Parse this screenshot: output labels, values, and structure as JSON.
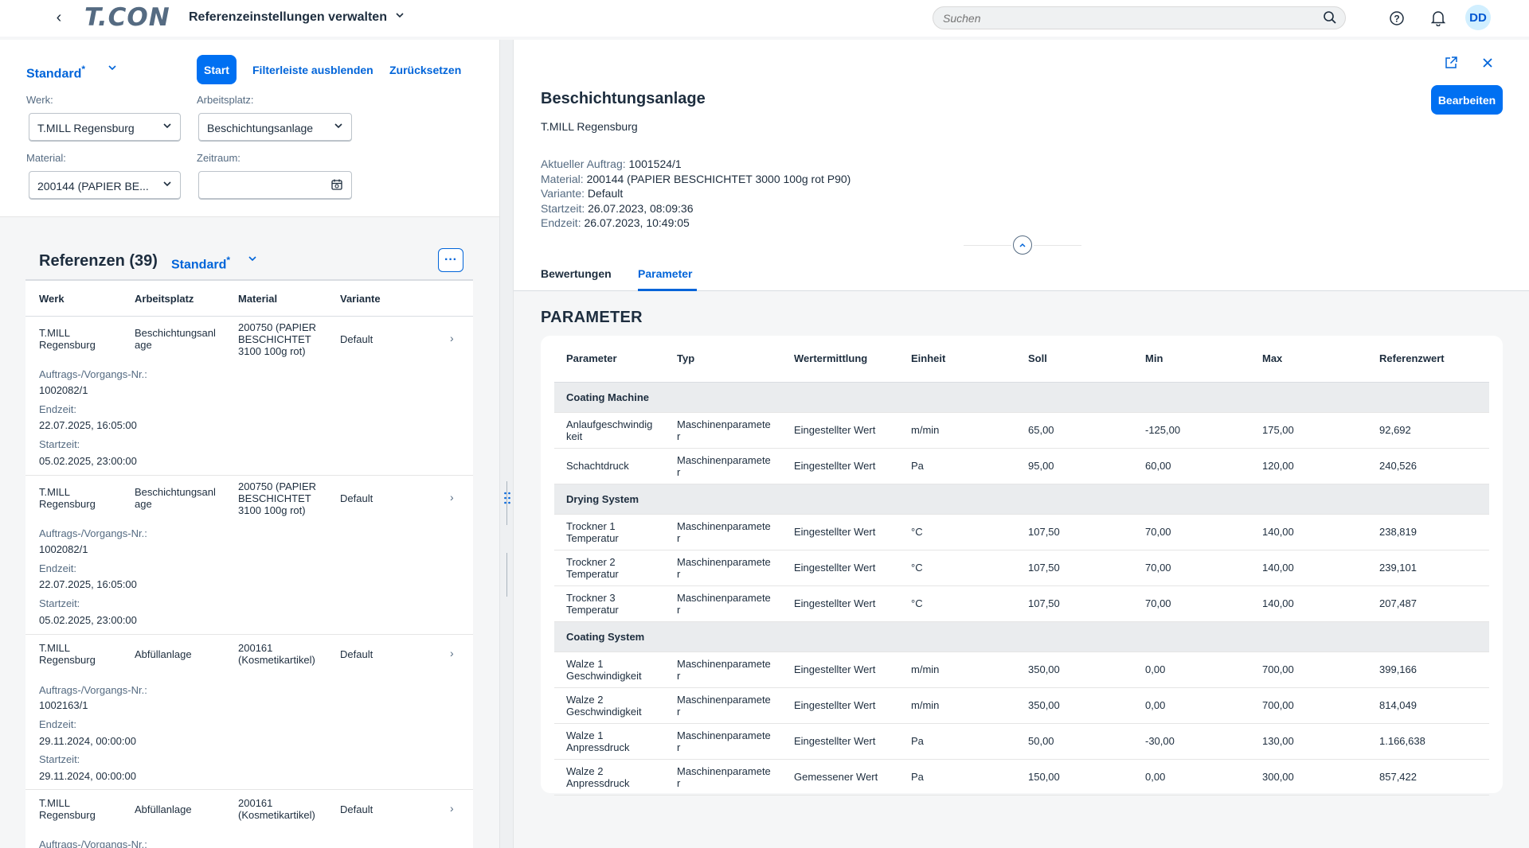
{
  "shell": {
    "logo": "T.CON",
    "app_title": "Referenzeinstellungen verwalten",
    "search_placeholder": "Suchen",
    "avatar_initials": "DD"
  },
  "filterbar": {
    "variant": "Standard",
    "variant_marker": "*",
    "start_label": "Start",
    "hide_label": "Filterleiste ausblenden",
    "reset_label": "Zurücksetzen",
    "werk_label": "Werk:",
    "werk_value": "T.MILL Regensburg",
    "arbeitsplatz_label": "Arbeitsplatz:",
    "arbeitsplatz_value": "Beschichtungsanlage",
    "material_label": "Material:",
    "material_value": "200144 (PAPIER BE...",
    "zeitraum_label": "Zeitraum:",
    "zeitraum_value": ""
  },
  "refs": {
    "title": "Referenzen (39)",
    "variant": "Standard",
    "variant_marker": "*",
    "more_label": "···",
    "columns": [
      "Werk",
      "Arbeitsplatz",
      "Material",
      "Variante"
    ],
    "items": [
      {
        "werk": "T.MILL\nRegensburg",
        "arbeitsplatz": "Beschichtungsanl\nage",
        "material": "200750 (PAPIER\nBESCHICHTET\n3100 100g rot)",
        "variante": "Default",
        "auftrag_label": "Auftrags-/Vorgangs-Nr.:",
        "auftrag": "1002082/1",
        "endzeit_label": "Endzeit:",
        "endzeit": "22.07.2025, 16:05:00",
        "startzeit_label": "Startzeit:",
        "startzeit": "05.02.2025, 23:00:00"
      },
      {
        "werk": "T.MILL\nRegensburg",
        "arbeitsplatz": "Beschichtungsanl\nage",
        "material": "200750 (PAPIER\nBESCHICHTET\n3100 100g rot)",
        "variante": "Default",
        "auftrag_label": "Auftrags-/Vorgangs-Nr.:",
        "auftrag": "1002082/1",
        "endzeit_label": "Endzeit:",
        "endzeit": "22.07.2025, 16:05:00",
        "startzeit_label": "Startzeit:",
        "startzeit": "05.02.2025, 23:00:00"
      },
      {
        "werk": "T.MILL\nRegensburg",
        "arbeitsplatz": "Abfüllanlage",
        "material": "200161\n(Kosmetikartikel)",
        "variante": "Default",
        "auftrag_label": "Auftrags-/Vorgangs-Nr.:",
        "auftrag": "1002163/1",
        "endzeit_label": "Endzeit:",
        "endzeit": "29.11.2024, 00:00:00",
        "startzeit_label": "Startzeit:",
        "startzeit": "29.11.2024, 00:00:00"
      },
      {
        "werk": "T.MILL\nRegensburg",
        "arbeitsplatz": "Abfüllanlage",
        "material": "200161\n(Kosmetikartikel)",
        "variante": "Default",
        "auftrag_label": "Auftrags-/Vorgangs-Nr.:"
      }
    ]
  },
  "detail": {
    "title": "Beschichtungsanlage",
    "subtitle": "T.MILL Regensburg",
    "edit_label": "Bearbeiten",
    "attrs": [
      {
        "k": "Aktueller Auftrag:",
        "v": "1001524/1"
      },
      {
        "k": "Material:",
        "v": "200144 (PAPIER BESCHICHTET 3000 100g rot P90)"
      },
      {
        "k": "Variante:",
        "v": "Default"
      },
      {
        "k": "Startzeit:",
        "v": "26.07.2023, 08:09:36"
      },
      {
        "k": "Endzeit:",
        "v": "26.07.2023, 10:49:05"
      }
    ],
    "tabs": [
      "Bewertungen",
      "Parameter"
    ],
    "active_tab": "Parameter",
    "section_title": "PARAMETER",
    "table": {
      "columns": [
        "Parameter",
        "Typ",
        "Wertermittlung",
        "Einheit",
        "Soll",
        "Min",
        "Max",
        "Referenzwert"
      ],
      "groups": [
        {
          "name": "Coating Machine",
          "rows": [
            [
              "Anlaufgeschwindig\nkeit",
              "Maschinenparamete\nr",
              "Eingestellter Wert",
              "m/min",
              "65,00",
              "-125,00",
              "175,00",
              "92,692"
            ],
            [
              "Schachtdruck",
              "Maschinenparamete\nr",
              "Eingestellter Wert",
              "Pa",
              "95,00",
              "60,00",
              "120,00",
              "240,526"
            ]
          ]
        },
        {
          "name": "Drying System",
          "rows": [
            [
              "Trockner 1\nTemperatur",
              "Maschinenparamete\nr",
              "Eingestellter Wert",
              "°C",
              "107,50",
              "70,00",
              "140,00",
              "238,819"
            ],
            [
              "Trockner 2\nTemperatur",
              "Maschinenparamete\nr",
              "Eingestellter Wert",
              "°C",
              "107,50",
              "70,00",
              "140,00",
              "239,101"
            ],
            [
              "Trockner 3\nTemperatur",
              "Maschinenparamete\nr",
              "Eingestellter Wert",
              "°C",
              "107,50",
              "70,00",
              "140,00",
              "207,487"
            ]
          ]
        },
        {
          "name": "Coating System",
          "rows": [
            [
              "Walze 1\nGeschwindigkeit",
              "Maschinenparamete\nr",
              "Eingestellter Wert",
              "m/min",
              "350,00",
              "0,00",
              "700,00",
              "399,166"
            ],
            [
              "Walze 2\nGeschwindigkeit",
              "Maschinenparamete\nr",
              "Eingestellter Wert",
              "m/min",
              "350,00",
              "0,00",
              "700,00",
              "814,049"
            ],
            [
              "Walze 1\nAnpressdruck",
              "Maschinenparamete\nr",
              "Eingestellter Wert",
              "Pa",
              "50,00",
              "-30,00",
              "130,00",
              "1.166,638"
            ],
            [
              "Walze 2\nAnpressdruck",
              "Maschinenparamete\nr",
              "Gemessener Wert",
              "Pa",
              "150,00",
              "0,00",
              "300,00",
              "857,422"
            ]
          ]
        }
      ]
    }
  },
  "colors": {
    "accent": "#0064d9",
    "button": "#0070f2",
    "text": "#1d2d3e",
    "muted": "#556b82"
  }
}
